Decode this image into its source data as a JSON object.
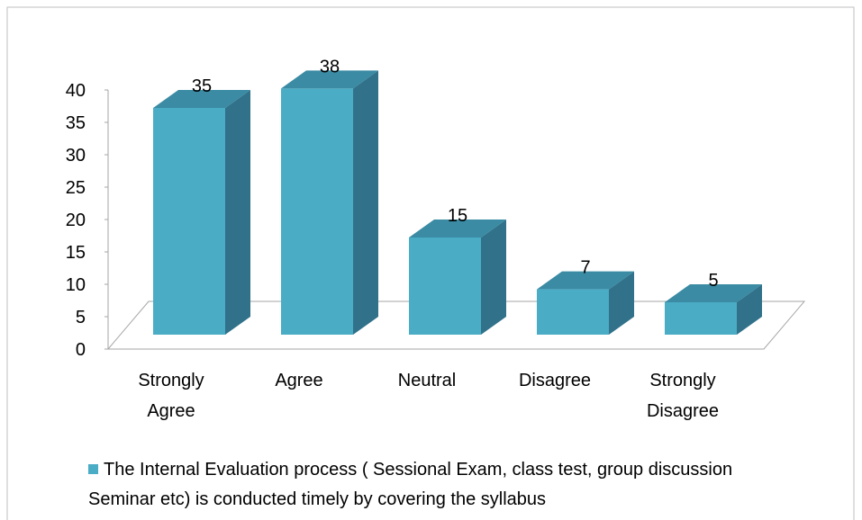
{
  "chart_data": {
    "type": "bar3d",
    "categories": [
      "Strongly Agree",
      "Agree",
      "Neutral",
      "Disagree",
      "Strongly Disagree"
    ],
    "series": [
      {
        "name": "The Internal Evaluation process ( Sessional Exam, class test, group discussion Seminar etc) is conducted timely by covering the syllabus",
        "color": "#4bacc6",
        "values": [
          35,
          38,
          15,
          7,
          5
        ]
      }
    ],
    "ylim": [
      0,
      40
    ],
    "yticks": [
      0,
      5,
      10,
      15,
      20,
      25,
      30,
      35,
      40
    ],
    "grid": false
  }
}
